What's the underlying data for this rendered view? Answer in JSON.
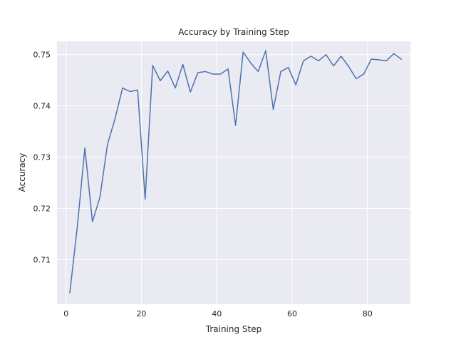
{
  "chart_data": {
    "type": "line",
    "title": "Accuracy by Training Step",
    "xlabel": "Training Step",
    "ylabel": "Accuracy",
    "xlim": [
      -2.4,
      91.4
    ],
    "ylim": [
      0.7013,
      0.7526
    ],
    "xticks": [
      0,
      20,
      40,
      60,
      80
    ],
    "xtick_labels": [
      "0",
      "20",
      "40",
      "60",
      "80"
    ],
    "yticks": [
      0.71,
      0.72,
      0.73,
      0.74,
      0.75
    ],
    "ytick_labels": [
      "0.71",
      "0.72",
      "0.73",
      "0.74",
      "0.75"
    ],
    "grid": true,
    "series": [
      {
        "color": "#4c72b0",
        "x": [
          1,
          3,
          5,
          7,
          9,
          11,
          13,
          15,
          17,
          19,
          21,
          23,
          25,
          27,
          29,
          31,
          33,
          35,
          37,
          39,
          41,
          43,
          45,
          47,
          49,
          51,
          53,
          55,
          57,
          59,
          61,
          63,
          65,
          67,
          69,
          71,
          73,
          75,
          77,
          79,
          81,
          83,
          85,
          87,
          89
        ],
        "y": [
          0.7035,
          0.7165,
          0.7318,
          0.7174,
          0.7222,
          0.7325,
          0.7375,
          0.7435,
          0.7428,
          0.7431,
          0.7218,
          0.7479,
          0.7449,
          0.7468,
          0.7435,
          0.7481,
          0.7427,
          0.7465,
          0.7467,
          0.7462,
          0.7462,
          0.7472,
          0.7362,
          0.7505,
          0.7484,
          0.7467,
          0.7508,
          0.7393,
          0.7467,
          0.7475,
          0.7441,
          0.7488,
          0.7497,
          0.7488,
          0.75,
          0.7478,
          0.7497,
          0.7477,
          0.7453,
          0.7462,
          0.7491,
          0.749,
          0.7488,
          0.7502,
          0.7491
        ]
      }
    ]
  }
}
